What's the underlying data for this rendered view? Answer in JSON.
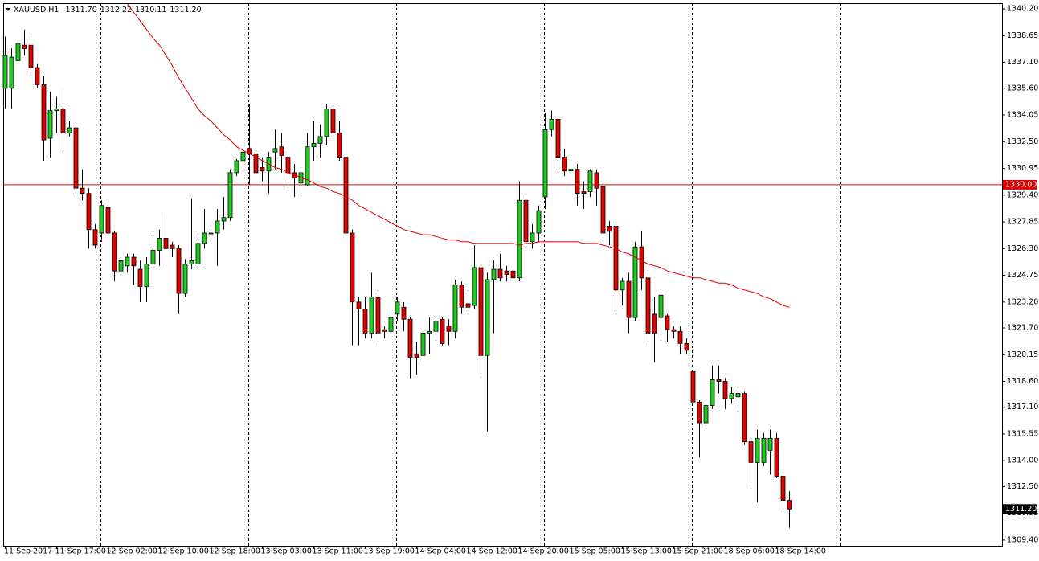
{
  "chart_data": {
    "type": "candlestick",
    "header": {
      "symbol": "XAUUSD,H1",
      "quote": [
        "1311.70",
        "1312.22",
        "1310.11",
        "1311.20"
      ]
    },
    "categories": [
      "11 Sep 2017",
      null,
      null,
      null,
      null,
      null,
      null,
      null,
      "11 Sep 17:00",
      null,
      null,
      null,
      null,
      null,
      null,
      null,
      "12 Sep 02:00",
      null,
      null,
      null,
      null,
      null,
      null,
      null,
      "12 Sep 10:00",
      null,
      null,
      null,
      null,
      null,
      null,
      null,
      "12 Sep 18:00",
      null,
      null,
      null,
      null,
      null,
      null,
      null,
      "13 Sep 03:00",
      null,
      null,
      null,
      null,
      null,
      null,
      null,
      "13 Sep 11:00",
      null,
      null,
      null,
      null,
      null,
      null,
      null,
      "13 Sep 19:00",
      null,
      null,
      null,
      null,
      null,
      null,
      null,
      "14 Sep 04:00",
      null,
      null,
      null,
      null,
      null,
      null,
      null,
      "14 Sep 12:00",
      null,
      null,
      null,
      null,
      null,
      null,
      null,
      "14 Sep 20:00",
      null,
      null,
      null,
      null,
      null,
      null,
      null,
      "15 Sep 05:00",
      null,
      null,
      null,
      null,
      null,
      null,
      null,
      "15 Sep 13:00",
      null,
      null,
      null,
      null,
      null,
      null,
      null,
      "15 Sep 21:00",
      null,
      null,
      null,
      null,
      null,
      null,
      null,
      "18 Sep 06:00",
      null,
      null,
      null,
      null,
      null,
      null,
      null,
      "18 Sep 14:00",
      null,
      null
    ],
    "open": [
      1335.6,
      1335.6,
      1337.2,
      1338.1,
      1338.1,
      1336.8,
      1335.8,
      1332.7,
      1334.3,
      1334.4,
      1333.0,
      1333.3,
      1329.8,
      1329.5,
      1327.4,
      1327.2,
      1328.7,
      1327.2,
      1325.0,
      1325.3,
      1325.8,
      1325.1,
      1324.1,
      1325.4,
      1326.2,
      1326.9,
      1326.5,
      1326.3,
      1323.7,
      1325.4,
      1325.4,
      1326.6,
      1327.2,
      1327.2,
      1327.9,
      1328.1,
      1330.7,
      1331.4,
      1332.1,
      1331.8,
      1331.0,
      1330.8,
      1331.9,
      1332.2,
      1331.6,
      1330.7,
      1330.1,
      1330.0,
      1332.2,
      1332.4,
      1332.8,
      1334.4,
      1333.0,
      1331.6,
      1327.2,
      1323.2,
      1322.8,
      1321.4,
      1323.5,
      1321.6,
      1321.5,
      1322.5,
      1322.9,
      1322.2,
      1320.2,
      1320.1,
      1321.4,
      1321.5,
      1322.2,
      1321.8,
      1321.5,
      1324.2,
      1323.1,
      1323.0,
      1325.2,
      1320.1,
      1324.5,
      1325.1,
      1325.0,
      1325.0,
      1324.6,
      1329.1,
      1326.7,
      1327.2,
      1329.3,
      1333.2,
      1333.8,
      1331.6,
      1330.8,
      1330.9,
      1329.6,
      1329.6,
      1330.7,
      1329.9,
      1327.6,
      1327.6,
      1323.9,
      1324.4,
      1322.3,
      1326.4,
      1324.6,
      1322.5,
      1322.3,
      1322.4,
      1321.6,
      1321.5,
      1320.8,
      1319.2,
      1317.4,
      1316.2,
      1317.2,
      1318.7,
      1318.6,
      1317.6,
      1317.7,
      1317.9,
      1315.1,
      1313.9,
      1313.9,
      1314.6,
      1315.3,
      1313.1,
      1311.7
    ],
    "high": [
      1338.6,
      1337.9,
      1338.4,
      1339.0,
      1338.6,
      1337.0,
      1336.3,
      1335.4,
      1335.1,
      1335.5,
      1333.7,
      1333.5,
      1330.9,
      1329.8,
      1327.7,
      1329.1,
      1328.8,
      1327.3,
      1325.8,
      1326.0,
      1326.0,
      1325.6,
      1325.8,
      1327.2,
      1327.4,
      1328.4,
      1326.7,
      1326.5,
      1325.7,
      1329.2,
      1327.0,
      1328.6,
      1327.6,
      1328.6,
      1329.3,
      1330.9,
      1331.5,
      1332.1,
      1334.7,
      1332.1,
      1331.6,
      1331.9,
      1333.2,
      1333.0,
      1332.1,
      1331.2,
      1330.9,
      1333.0,
      1333.7,
      1333.5,
      1334.7,
      1334.7,
      1333.7,
      1331.7,
      1327.4,
      1323.5,
      1323.5,
      1324.9,
      1323.9,
      1321.8,
      1322.8,
      1323.5,
      1323.2,
      1322.3,
      1320.9,
      1321.6,
      1322.3,
      1322.3,
      1322.3,
      1322.2,
      1324.5,
      1324.4,
      1323.9,
      1326.5,
      1325.3,
      1324.9,
      1325.6,
      1326.0,
      1325.3,
      1325.3,
      1330.2,
      1329.5,
      1327.7,
      1328.8,
      1334.2,
      1334.3,
      1334.0,
      1332.1,
      1331.6,
      1331.2,
      1330.2,
      1330.9,
      1330.9,
      1330.1,
      1327.9,
      1327.9,
      1324.6,
      1324.9,
      1326.7,
      1327.3,
      1324.9,
      1323.5,
      1323.9,
      1322.5,
      1321.8,
      1321.8,
      1321.1,
      1319.5,
      1317.5,
      1317.4,
      1319.5,
      1319.5,
      1318.8,
      1318.3,
      1318.3,
      1318.0,
      1315.2,
      1315.8,
      1315.6,
      1315.8,
      1315.6,
      1313.2,
      1312.22
    ],
    "low": [
      1334.4,
      1334.4,
      1337.0,
      1337.5,
      1336.5,
      1335.6,
      1331.4,
      1331.6,
      1333.0,
      1332.1,
      1332.8,
      1329.5,
      1329.1,
      1326.3,
      1326.3,
      1326.7,
      1327.0,
      1324.4,
      1324.9,
      1324.9,
      1324.2,
      1323.2,
      1323.2,
      1325.1,
      1325.3,
      1325.3,
      1325.8,
      1322.5,
      1323.5,
      1325.1,
      1325.1,
      1326.3,
      1326.7,
      1325.3,
      1327.4,
      1327.9,
      1330.5,
      1330.9,
      1330.0,
      1330.7,
      1330.2,
      1329.5,
      1330.9,
      1330.7,
      1329.8,
      1329.3,
      1329.3,
      1329.9,
      1331.4,
      1331.6,
      1332.3,
      1332.8,
      1331.4,
      1327.0,
      1320.7,
      1320.7,
      1321.1,
      1321.1,
      1320.7,
      1321.1,
      1321.2,
      1322.1,
      1321.5,
      1318.8,
      1319.0,
      1319.7,
      1320.2,
      1321.1,
      1320.7,
      1320.7,
      1321.1,
      1322.5,
      1322.5,
      1322.8,
      1318.9,
      1315.7,
      1321.4,
      1324.4,
      1324.4,
      1324.4,
      1324.4,
      1326.5,
      1326.3,
      1326.7,
      1328.6,
      1332.8,
      1330.7,
      1330.5,
      1330.7,
      1328.8,
      1328.6,
      1329.3,
      1328.8,
      1326.7,
      1326.5,
      1322.5,
      1323.0,
      1321.4,
      1322.1,
      1323.9,
      1320.7,
      1319.7,
      1321.1,
      1320.9,
      1321.1,
      1320.2,
      1320.2,
      1317.2,
      1314.2,
      1316.0,
      1317.0,
      1317.9,
      1317.0,
      1317.3,
      1317.0,
      1314.9,
      1312.5,
      1311.6,
      1313.7,
      1313.2,
      1313.0,
      1311.0,
      1310.11
    ],
    "close": [
      1337.5,
      1337.4,
      1338.2,
      1337.9,
      1336.8,
      1335.8,
      1332.6,
      1334.3,
      1334.4,
      1333.0,
      1333.3,
      1329.8,
      1329.5,
      1327.4,
      1326.5,
      1328.8,
      1327.2,
      1325.0,
      1325.6,
      1325.8,
      1325.3,
      1324.1,
      1325.4,
      1326.2,
      1326.9,
      1326.3,
      1326.3,
      1323.7,
      1325.4,
      1325.6,
      1326.6,
      1327.2,
      1327.2,
      1327.9,
      1328.1,
      1330.7,
      1331.4,
      1331.9,
      1331.8,
      1330.7,
      1330.8,
      1331.6,
      1332.1,
      1331.7,
      1330.7,
      1330.4,
      1330.7,
      1332.2,
      1332.4,
      1332.8,
      1334.4,
      1333.0,
      1331.6,
      1327.2,
      1323.2,
      1322.8,
      1321.4,
      1323.5,
      1321.4,
      1321.5,
      1322.3,
      1323.2,
      1322.2,
      1320.0,
      1320.0,
      1321.4,
      1321.5,
      1322.1,
      1320.8,
      1321.5,
      1324.2,
      1322.9,
      1322.9,
      1325.2,
      1320.1,
      1324.5,
      1325.1,
      1324.6,
      1324.8,
      1324.6,
      1329.1,
      1326.7,
      1327.2,
      1328.5,
      1333.2,
      1333.8,
      1331.6,
      1330.8,
      1330.9,
      1329.5,
      1329.5,
      1330.8,
      1329.8,
      1327.2,
      1327.3,
      1323.9,
      1324.4,
      1322.3,
      1326.4,
      1324.6,
      1321.4,
      1321.4,
      1323.6,
      1321.6,
      1321.5,
      1320.8,
      1320.4,
      1317.4,
      1316.2,
      1317.2,
      1318.7,
      1318.6,
      1317.6,
      1317.9,
      1317.9,
      1315.1,
      1313.9,
      1315.3,
      1315.3,
      1315.3,
      1313.1,
      1311.7,
      1311.2
    ],
    "up_color": "#1ecb1e",
    "down_color": "#e00000",
    "ma": {
      "color": "#e00000",
      "values": [
        null,
        null,
        null,
        null,
        null,
        null,
        null,
        null,
        null,
        null,
        null,
        null,
        null,
        null,
        null,
        null,
        null,
        null,
        null,
        1340.5,
        1340.0,
        1339.5,
        1339.0,
        1338.5,
        1338.1,
        1337.5,
        1336.9,
        1336.2,
        1335.6,
        1335.0,
        1334.4,
        1334.0,
        1333.7,
        1333.3,
        1332.9,
        1332.6,
        1332.2,
        1332.0,
        1331.8,
        1331.6,
        1331.4,
        1331.2,
        1331.0,
        1330.9,
        1330.7,
        1330.6,
        1330.4,
        1330.3,
        1330.1,
        1329.9,
        1329.8,
        1329.6,
        1329.5,
        1329.3,
        1329.1,
        1328.8,
        1328.6,
        1328.4,
        1328.2,
        1328.0,
        1327.8,
        1327.6,
        1327.4,
        1327.3,
        1327.2,
        1327.1,
        1327.1,
        1327.0,
        1326.9,
        1326.8,
        1326.8,
        1326.7,
        1326.7,
        1326.6,
        1326.6,
        1326.6,
        1326.6,
        1326.6,
        1326.6,
        1326.6,
        1326.5,
        1326.6,
        1326.6,
        1326.7,
        1326.7,
        1326.7,
        1326.7,
        1326.7,
        1326.7,
        1326.7,
        1326.6,
        1326.6,
        1326.6,
        1326.5,
        1326.4,
        1326.3,
        1326.1,
        1326.0,
        1325.8,
        1325.6,
        1325.4,
        1325.3,
        1325.2,
        1325.0,
        1324.9,
        1324.8,
        1324.7,
        1324.6,
        1324.6,
        1324.5,
        1324.4,
        1324.3,
        1324.3,
        1324.2,
        1324.0,
        1323.9,
        1323.8,
        1323.7,
        1323.5,
        1323.4,
        1323.2,
        1323.0,
        1322.9
      ]
    },
    "hline": {
      "value": 1330,
      "label": "1330.00",
      "color": "#e00000"
    },
    "last_price": {
      "value": 1311.2,
      "label": "1311.20"
    },
    "ylim": [
      1309.07,
      1340.53
    ],
    "yticks": [
      {
        "value": 1340.2,
        "label": "1340.20"
      },
      1338.65,
      {
        "value": 1337.1,
        "label": "1337.10"
      },
      {
        "value": 1335.6,
        "label": "1335.60"
      },
      1334.05,
      {
        "value": 1332.5,
        "label": "1332.50"
      },
      1330.95,
      {
        "value": 1329.4,
        "label": "1329.40"
      },
      1327.85,
      {
        "value": 1326.3,
        "label": "1326.30"
      },
      1324.75,
      {
        "value": 1323.2,
        "label": "1323.20"
      },
      {
        "value": 1321.7,
        "label": "1321.70"
      },
      1320.15,
      {
        "value": 1318.6,
        "label": "1318.60"
      },
      {
        "value": 1317.1,
        "label": "1317.10"
      },
      1315.55,
      {
        "value": 1314,
        "label": "1314.00"
      },
      {
        "value": 1312.5,
        "label": "1312.50"
      },
      1310.95,
      {
        "value": 1309.4,
        "label": "1309.40"
      }
    ]
  }
}
